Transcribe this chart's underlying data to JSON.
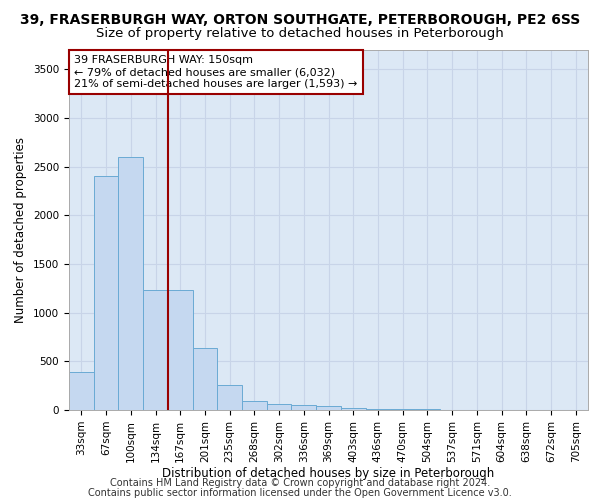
{
  "title_line1": "39, FRASERBURGH WAY, ORTON SOUTHGATE, PETERBOROUGH, PE2 6SS",
  "title_line2": "Size of property relative to detached houses in Peterborough",
  "xlabel": "Distribution of detached houses by size in Peterborough",
  "ylabel": "Number of detached properties",
  "footnote1": "Contains HM Land Registry data © Crown copyright and database right 2024.",
  "footnote2": "Contains public sector information licensed under the Open Government Licence v3.0.",
  "bar_labels": [
    "33sqm",
    "67sqm",
    "100sqm",
    "134sqm",
    "167sqm",
    "201sqm",
    "235sqm",
    "268sqm",
    "302sqm",
    "336sqm",
    "369sqm",
    "403sqm",
    "436sqm",
    "470sqm",
    "504sqm",
    "537sqm",
    "571sqm",
    "604sqm",
    "638sqm",
    "672sqm",
    "705sqm"
  ],
  "bar_values": [
    390,
    2400,
    2600,
    1230,
    1230,
    640,
    260,
    90,
    65,
    55,
    40,
    20,
    15,
    10,
    8,
    5,
    3,
    2,
    1,
    1,
    0
  ],
  "bar_color": "#c5d8f0",
  "bar_edge_color": "#6aaad4",
  "vline_x": 3.5,
  "vline_color": "#990000",
  "annotation_line1": "39 FRASERBURGH WAY: 150sqm",
  "annotation_line2": "← 79% of detached houses are smaller (6,032)",
  "annotation_line3": "21% of semi-detached houses are larger (1,593) →",
  "annotation_box_color": "#ffffff",
  "annotation_box_edge": "#990000",
  "ylim": [
    0,
    3700
  ],
  "yticks": [
    0,
    500,
    1000,
    1500,
    2000,
    2500,
    3000,
    3500
  ],
  "grid_color": "#c8d4e8",
  "background_color": "#dce8f5",
  "title1_fontsize": 10,
  "title2_fontsize": 9.5,
  "axis_label_fontsize": 8.5,
  "tick_fontsize": 7.5,
  "footnote_fontsize": 7,
  "annot_fontsize": 8
}
